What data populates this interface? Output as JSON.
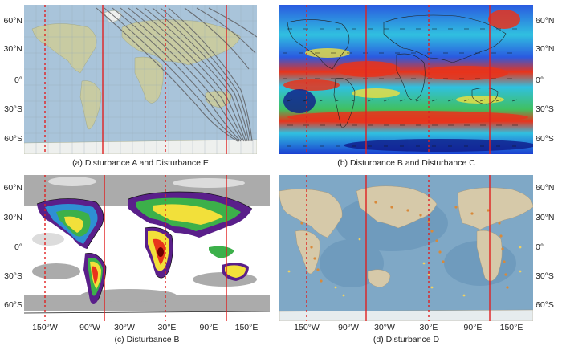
{
  "latitude_labels": [
    "60°N",
    "30°N",
    "0°",
    "30°S",
    "60°S"
  ],
  "longitude_labels": [
    "150°W",
    "90°W",
    "30°W",
    "30°E",
    "90°E",
    "150°E"
  ],
  "panels": {
    "a": {
      "caption": "(a) Disturbance A and Disturbance E"
    },
    "b": {
      "caption": "(b) Disturbance B and Disturbance C"
    },
    "c": {
      "caption": "(c) Disturbance B"
    },
    "d": {
      "caption": "(d) Disturbance D"
    }
  },
  "colors": {
    "marker_line": "#e02020",
    "ocean_a": "#aac6dc",
    "land_a": "#c7c9a0",
    "jet_low": "#1a3fd1",
    "jet_high": "#e8341c",
    "ocean_d": "#7fa8c6",
    "land_d": "#d6c9a9"
  }
}
